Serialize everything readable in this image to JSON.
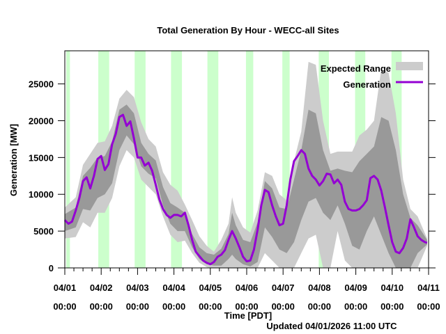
{
  "chart_data": {
    "type": "line",
    "title": "Total Generation By Hour - WECC-all Sites",
    "xlabel": "Time [PDT]",
    "ylabel": "Generation [MW]",
    "footer": "Updated 04/01/2026 11:00 UTC",
    "ylim": [
      0,
      29500
    ],
    "xlim_days": [
      0,
      10
    ],
    "y_ticks": [
      0,
      5000,
      10000,
      15000,
      20000,
      25000
    ],
    "y_tick_labels": [
      "0",
      "5000",
      "10000",
      "15000",
      "20000",
      "25000"
    ],
    "x_tick_labels": [
      {
        "date": "04/01",
        "time": "00:00"
      },
      {
        "date": "04/02",
        "time": "00:00"
      },
      {
        "date": "04/03",
        "time": "00:00"
      },
      {
        "date": "04/04",
        "time": "00:00"
      },
      {
        "date": "04/05",
        "time": "00:00"
      },
      {
        "date": "04/06",
        "time": "00:00"
      },
      {
        "date": "04/07",
        "time": "00:00"
      },
      {
        "date": "04/08",
        "time": "00:00"
      },
      {
        "date": "04/09",
        "time": "00:00"
      },
      {
        "date": "04/10",
        "time": "00:00"
      },
      {
        "date": "04/11",
        "time": "00:00"
      }
    ],
    "grid": false,
    "legend": {
      "position": "top-right",
      "entries": [
        {
          "label": "Expected Range",
          "type": "band",
          "color": "#cccccc"
        },
        {
          "label": "Generation",
          "type": "line",
          "color": "#9400d3"
        }
      ]
    },
    "colors": {
      "generation": "#9400d3",
      "outer_band": "#cccccc",
      "inner_band": "#999999",
      "night_shading": "#ccffcc"
    },
    "night_bands_days": [
      [
        0.04,
        0.14
      ],
      [
        0.92,
        1.22
      ],
      [
        1.92,
        2.22
      ],
      [
        2.92,
        3.22
      ],
      [
        3.92,
        4.22
      ],
      [
        4.98,
        5.18
      ],
      [
        5.98,
        6.18
      ],
      [
        6.98,
        7.26
      ],
      [
        7.98,
        8.26
      ],
      [
        8.98,
        9.26
      ]
    ],
    "series": [
      {
        "name": "Generation",
        "x_days": [
          0.0,
          0.1,
          0.2,
          0.3,
          0.4,
          0.5,
          0.6,
          0.7,
          0.8,
          0.9,
          1.0,
          1.1,
          1.2,
          1.3,
          1.4,
          1.5,
          1.6,
          1.7,
          1.8,
          1.9,
          2.0,
          2.1,
          2.2,
          2.3,
          2.4,
          2.5,
          2.6,
          2.7,
          2.8,
          2.9,
          3.0,
          3.1,
          3.2,
          3.3,
          3.4,
          3.5,
          3.6,
          3.7,
          3.8,
          3.9,
          4.0,
          4.1,
          4.2,
          4.3,
          4.4,
          4.5,
          4.6,
          4.7,
          4.8,
          4.9,
          5.0,
          5.1,
          5.2,
          5.3,
          5.4,
          5.5,
          5.6,
          5.7,
          5.8,
          5.9,
          6.0,
          6.1,
          6.2,
          6.3,
          6.4,
          6.5,
          6.6,
          6.7,
          6.8,
          6.9,
          7.0,
          7.1,
          7.2,
          7.3,
          7.4,
          7.5,
          7.6,
          7.7,
          7.8,
          7.9,
          8.0,
          8.1,
          8.2,
          8.3,
          8.4,
          8.5,
          8.6,
          8.7,
          8.8,
          8.9,
          9.0,
          9.1,
          9.2,
          9.3,
          9.4,
          9.5,
          9.6,
          9.7,
          9.8,
          9.9,
          9.96
        ],
        "values": [
          6500,
          6000,
          6300,
          7800,
          9500,
          11800,
          12300,
          10800,
          12500,
          14800,
          15200,
          13300,
          14100,
          16800,
          18200,
          20500,
          20800,
          19300,
          19900,
          17600,
          15000,
          15000,
          13900,
          14300,
          13200,
          11300,
          9300,
          8000,
          7200,
          6800,
          7200,
          7200,
          7000,
          7500,
          5800,
          3800,
          2200,
          1600,
          1000,
          700,
          500,
          800,
          1500,
          1800,
          2400,
          3800,
          5000,
          4000,
          2800,
          1500,
          900,
          1000,
          2500,
          5200,
          8500,
          10600,
          10300,
          8500,
          7000,
          5800,
          6000,
          8500,
          12000,
          14500,
          15200,
          16000,
          15500,
          13500,
          12500,
          12000,
          11200,
          11800,
          12800,
          12700,
          11500,
          12000,
          11300,
          9000,
          8000,
          7800,
          7800,
          8000,
          8500,
          9200,
          12200,
          12500,
          12000,
          10500,
          8200,
          5800,
          3500,
          2200,
          2000,
          2700,
          4000,
          6600,
          5500,
          4300,
          3800,
          3500,
          3400
        ]
      },
      {
        "name": "Expected Range (outer)",
        "x_days": [
          0.0,
          0.3,
          0.5,
          0.7,
          0.9,
          1.1,
          1.3,
          1.5,
          1.7,
          1.9,
          2.1,
          2.3,
          2.5,
          2.7,
          2.9,
          3.1,
          3.3,
          3.5,
          3.7,
          3.9,
          4.1,
          4.3,
          4.5,
          4.6,
          4.7,
          4.9,
          5.1,
          5.3,
          5.5,
          5.7,
          5.9,
          6.1,
          6.3,
          6.5,
          6.7,
          6.9,
          7.1,
          7.3,
          7.5,
          7.7,
          7.9,
          8.1,
          8.3,
          8.5,
          8.7,
          8.9,
          9.1,
          9.3,
          9.5,
          9.7,
          9.96
        ],
        "upper": [
          8200,
          9600,
          14000,
          15500,
          17000,
          17200,
          19300,
          23000,
          24200,
          23200,
          19800,
          17500,
          16500,
          13000,
          11300,
          10500,
          8600,
          6500,
          4300,
          3000,
          2200,
          3800,
          6000,
          9600,
          7500,
          5500,
          4800,
          7800,
          13000,
          12500,
          10000,
          9200,
          14500,
          18500,
          28000,
          27600,
          20000,
          15500,
          15800,
          15800,
          15800,
          18000,
          18800,
          20000,
          27000,
          26500,
          21000,
          12000,
          8000,
          7000,
          4000
        ],
        "lower": [
          4000,
          4200,
          6200,
          5500,
          7500,
          7500,
          9500,
          13800,
          16000,
          15000,
          12000,
          11000,
          10000,
          7000,
          4500,
          3500,
          3700,
          2000,
          700,
          100,
          0,
          0,
          0,
          0,
          0,
          0,
          0,
          0,
          2000,
          1000,
          0,
          0,
          0,
          2000,
          4000,
          4500,
          0,
          0,
          5000,
          1000,
          0,
          0,
          0,
          0,
          0,
          0,
          0,
          0,
          0,
          0,
          3000
        ]
      },
      {
        "name": "Expected Range (inner)",
        "x_days": [
          0.0,
          0.3,
          0.5,
          0.7,
          0.9,
          1.1,
          1.3,
          1.5,
          1.7,
          1.9,
          2.1,
          2.3,
          2.5,
          2.7,
          2.9,
          3.1,
          3.3,
          3.5,
          3.7,
          3.9,
          4.1,
          4.3,
          4.5,
          4.6,
          4.7,
          4.9,
          5.1,
          5.3,
          5.5,
          5.7,
          5.9,
          6.1,
          6.3,
          6.5,
          6.7,
          6.9,
          7.1,
          7.3,
          7.5,
          7.7,
          7.9,
          8.1,
          8.3,
          8.5,
          8.7,
          8.9,
          9.1,
          9.3,
          9.5,
          9.7,
          9.96
        ],
        "upper": [
          7300,
          8200,
          12500,
          13600,
          15000,
          15200,
          17200,
          21500,
          22200,
          21000,
          17000,
          15500,
          14600,
          11000,
          8800,
          8200,
          7500,
          4600,
          2800,
          2000,
          1800,
          2600,
          4600,
          7500,
          5800,
          3800,
          3500,
          6200,
          11800,
          10800,
          8200,
          8000,
          12000,
          16000,
          21500,
          21000,
          16000,
          13200,
          13500,
          13200,
          13000,
          14500,
          15500,
          16500,
          20500,
          20000,
          16000,
          10000,
          6800,
          5800,
          3800
        ],
        "lower": [
          5000,
          5500,
          8000,
          7800,
          9500,
          10000,
          11500,
          16000,
          18000,
          16800,
          13800,
          12800,
          12200,
          8500,
          6000,
          5000,
          5000,
          2800,
          1200,
          500,
          300,
          300,
          1200,
          1800,
          1200,
          500,
          200,
          800,
          5500,
          4200,
          2500,
          2000,
          3500,
          6500,
          9000,
          9500,
          7500,
          6500,
          8500,
          6000,
          3000,
          2500,
          5000,
          7000,
          4500,
          2000,
          0,
          0,
          0,
          2000,
          3200
        ]
      }
    ]
  }
}
